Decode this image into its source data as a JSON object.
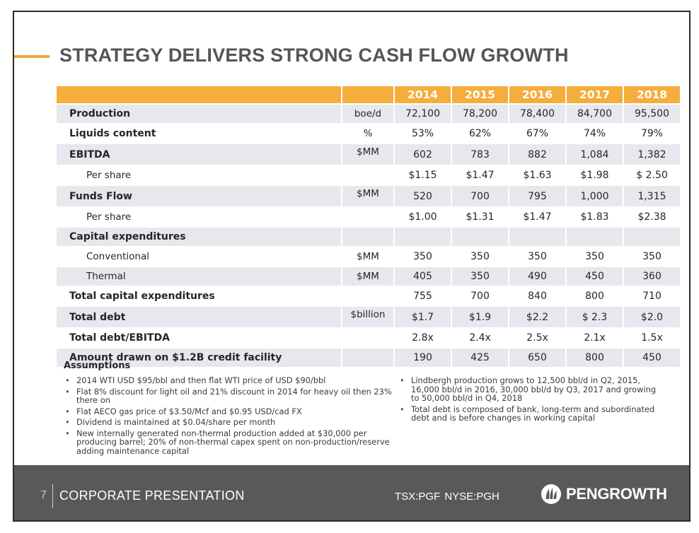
{
  "slide": {
    "title": "STRATEGY DELIVERS STRONG CASH FLOW GROWTH",
    "accent_color": "#f4a43c"
  },
  "table": {
    "years": [
      "2014",
      "2015",
      "2016",
      "2017",
      "2018"
    ],
    "rows": [
      {
        "label": "Production",
        "unit": "boe/d",
        "values": [
          "72,100",
          "78,200",
          "78,400",
          "84,700",
          "95,500"
        ]
      },
      {
        "label": "Liquids content",
        "unit": "%",
        "values": [
          "53%",
          "62%",
          "67%",
          "74%",
          "79%"
        ]
      },
      {
        "label": "EBITDA",
        "unit": "$MM",
        "values": [
          "602",
          "783",
          "882",
          "1,084",
          "1,382"
        ]
      },
      {
        "label": "Per share",
        "unit": "",
        "values": [
          "$1.15",
          "$1.47",
          "$1.63",
          "$1.98",
          "$ 2.50"
        ]
      },
      {
        "label": "Funds Flow",
        "unit": "$MM",
        "values": [
          "520",
          "700",
          "795",
          "1,000",
          "1,315"
        ]
      },
      {
        "label": "Per share",
        "unit": "",
        "values": [
          "$1.00",
          "$1.31",
          "$1.47",
          "$1.83",
          "$2.38"
        ]
      },
      {
        "label": "Capital expenditures",
        "unit": "",
        "values": [
          "",
          "",
          "",
          "",
          ""
        ]
      },
      {
        "label": "Conventional",
        "unit": "$MM",
        "values": [
          "350",
          "350",
          "350",
          "350",
          "350"
        ]
      },
      {
        "label": "Thermal",
        "unit": "$MM",
        "values": [
          "405",
          "350",
          "490",
          "450",
          "360"
        ]
      },
      {
        "label": "Total capital expenditures",
        "unit": "",
        "values": [
          "755",
          "700",
          "840",
          "800",
          "710"
        ]
      },
      {
        "label": "Total debt",
        "unit": "$billion",
        "values": [
          "$1.7",
          "$1.9",
          "$2.2",
          "$ 2.3",
          "$2.0"
        ]
      },
      {
        "label": "Total debt/EBITDA",
        "unit": "",
        "values": [
          "2.8x",
          "2.4x",
          "2.5x",
          "2.1x",
          "1.5x"
        ]
      },
      {
        "label": "Amount drawn on $1.2B credit facility",
        "unit": "",
        "values": [
          "190",
          "425",
          "650",
          "800",
          "450"
        ]
      }
    ]
  },
  "assumptions": {
    "title": "Assumptions",
    "left": [
      "2014 WTI USD $95/bbl and then flat WTI price of USD $90/bbl",
      "Flat 8% discount for light oil and 21% discount in 2014 for heavy oil then 23% there on",
      "Flat AECO gas price of $3.50/Mcf and $0.95 USD/cad FX",
      "Dividend is maintained at $0.04/share per month",
      "New internally generated non-thermal production added at $30,000 per producing barrel; 20% of non-thermal capex spent on non-production/reserve adding  maintenance capital"
    ],
    "right": [
      "Lindbergh production grows to 12,500 bbl/d in Q2, 2015, 16,000 bbl/d in 2016, 30,000 bbl/d by Q3, 2017 and growing to 50,000 bbl/d in Q4, 2018",
      "Total debt is composed of bank, long-term and subordinated debt and is before changes in working capital"
    ]
  },
  "footer": {
    "page_number": "7",
    "section": "CORPORATE PRESENTATION",
    "tickers": "TSX:PGF  NYSE:PGH",
    "logo_text": "PENGROWTH",
    "logo_icon": "pengrowth-flame-logo-icon"
  }
}
